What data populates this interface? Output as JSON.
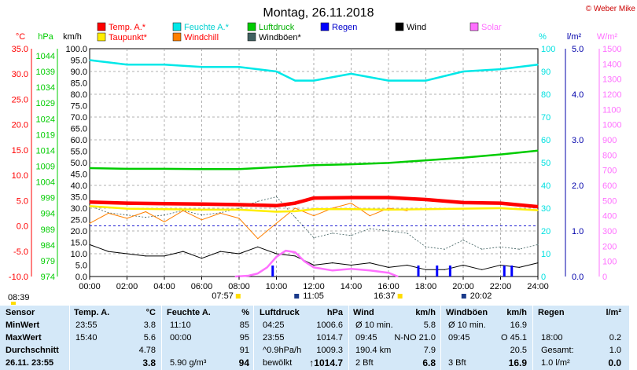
{
  "page": {
    "title": "Montag, 26.11.2018",
    "credit": "© Weber Mike",
    "sunrise": "07:57",
    "sunset": "16:37",
    "moonrise": "11:05",
    "moonset": "20:02",
    "left_time": "08:39"
  },
  "axes": {
    "left_units": [
      "°C",
      "hPa",
      "km/h"
    ],
    "right_units": [
      "%",
      "l/m²",
      "W/m²"
    ],
    "x_ticks": [
      "00:00",
      "02:00",
      "04:00",
      "06:00",
      "08:00",
      "10:00",
      "12:00",
      "14:00",
      "16:00",
      "18:00",
      "20:00",
      "22:00",
      "24:00"
    ],
    "temp_ticks": [
      "35.0",
      "30.0",
      "25.0",
      "20.0",
      "15.0",
      "10.0",
      "5.0",
      "0.0",
      "-5.0",
      "-10.0"
    ],
    "hpa_ticks": [
      "1044",
      "1039",
      "1034",
      "1029",
      "1024",
      "1019",
      "1014",
      "1009",
      "1004",
      "999",
      "994",
      "989",
      "984",
      "979",
      "974"
    ],
    "kmh_ticks": [
      "100.0",
      "95.0",
      "90.0",
      "85.0",
      "80.0",
      "75.0",
      "70.0",
      "65.0",
      "60.0",
      "55.0",
      "50.0",
      "45.0",
      "40.0",
      "35.0",
      "30.0",
      "25.0",
      "20.0",
      "15.0",
      "10.0",
      "5.0",
      "0.0"
    ],
    "pct_ticks": [
      "100",
      "90",
      "80",
      "70",
      "60",
      "50",
      "40",
      "30",
      "20",
      "10",
      "0"
    ],
    "rain_ticks": [
      "5.0",
      "4.0",
      "3.0",
      "2.0",
      "1.0",
      "0.0"
    ],
    "solar_ticks": [
      "1500",
      "1400",
      "1300",
      "1200",
      "1100",
      "1000",
      "900",
      "800",
      "700",
      "600",
      "500",
      "400",
      "300",
      "200",
      "100",
      "0"
    ],
    "colors": {
      "temp_axis": "#ff0000",
      "hpa_axis": "#00cc00",
      "kmh_axis": "#000000",
      "pct_axis": "#00e0e0",
      "rain_axis": "#0000aa",
      "solar_axis": "#ff70ff"
    }
  },
  "legend": [
    {
      "label": "Temp. A.*",
      "color": "#ff0000",
      "label_color": "#ff0000"
    },
    {
      "label": "Feuchte A.*",
      "color": "#00e8e8",
      "label_color": "#00d0d0"
    },
    {
      "label": "Luftdruck",
      "color": "#00cc00",
      "label_color": "#00b000"
    },
    {
      "label": "Regen",
      "color": "#0000ff",
      "label_color": "#0000cc"
    },
    {
      "label": "Wind",
      "color": "#000000",
      "label_color": "#000000"
    },
    {
      "label": "Solar",
      "color": "#ff70ff",
      "label_color": "#ff70ff"
    },
    {
      "label": "Taupunkt*",
      "color": "#ffee00",
      "label_color": "#ff0000"
    },
    {
      "label": "Windchill",
      "color": "#ff8000",
      "label_color": "#ff0000"
    },
    {
      "label": "Windböen*",
      "color": "#406060",
      "label_color": "#000000"
    }
  ],
  "chart_data": {
    "type": "line",
    "title": "Montag, 26.11.2018",
    "x_unit": "time of day",
    "xlim": [
      "00:00",
      "24:00"
    ],
    "grid": true,
    "legend_position": "top",
    "series": [
      {
        "name": "Temp. A.*",
        "axis": "°C",
        "x": [
          0,
          2,
          4,
          6,
          8,
          9,
          10,
          11,
          12,
          14,
          16,
          18,
          20,
          22,
          24
        ],
        "values": [
          4.7,
          4.5,
          4.4,
          4.3,
          4.2,
          4.1,
          4.0,
          4.5,
          5.5,
          5.6,
          5.6,
          5.2,
          4.6,
          4.5,
          3.8
        ]
      },
      {
        "name": "Taupunkt*",
        "axis": "°C",
        "x": [
          0,
          2,
          4,
          6,
          8,
          10,
          11,
          12,
          14,
          16,
          18,
          20,
          22,
          24
        ],
        "values": [
          3.9,
          3.4,
          3.3,
          3.2,
          3.2,
          2.8,
          2.9,
          3.3,
          3.3,
          3.2,
          3.3,
          3.4,
          3.5,
          3.1
        ]
      },
      {
        "name": "Feuchte A.*",
        "axis": "%",
        "x": [
          0,
          1,
          2,
          4,
          6,
          8,
          10,
          11,
          12,
          14,
          16,
          18,
          20,
          22,
          24
        ],
        "values": [
          95,
          94,
          93,
          93,
          92,
          92,
          90,
          86,
          86,
          89,
          86,
          86,
          90,
          91,
          93
        ]
      },
      {
        "name": "Luftdruck",
        "axis": "hPa",
        "x": [
          0,
          2,
          4,
          6,
          8,
          10,
          12,
          14,
          16,
          18,
          20,
          22,
          24
        ],
        "values": [
          1007.3,
          1007.1,
          1007.1,
          1007.0,
          1007.0,
          1007.6,
          1008.2,
          1008.5,
          1008.9,
          1009.7,
          1010.5,
          1011.5,
          1012.7
        ]
      },
      {
        "name": "Windchill",
        "axis": "°C",
        "x": [
          0,
          1,
          2,
          3,
          4,
          5,
          6,
          7,
          8,
          9,
          10,
          11,
          12,
          13,
          14,
          15,
          16,
          17
        ],
        "values": [
          0.5,
          2.5,
          1.5,
          2.8,
          0.8,
          3.0,
          1.2,
          2.5,
          1.5,
          -2.5,
          0.5,
          3.5,
          2.0,
          3.5,
          4.5,
          2.0,
          3.5,
          3.0
        ]
      },
      {
        "name": "Wind",
        "axis": "km/h",
        "x": [
          0,
          1,
          2,
          3,
          4,
          5,
          6,
          7,
          8,
          9,
          10,
          11,
          12,
          13,
          14,
          15,
          16,
          17,
          18,
          19,
          20,
          21,
          22,
          23,
          24
        ],
        "values": [
          14,
          11,
          10,
          9,
          9,
          11,
          8,
          11,
          10,
          13,
          10,
          9,
          5,
          6,
          5,
          6,
          4,
          5,
          3,
          3,
          5,
          3,
          5,
          4,
          6
        ]
      },
      {
        "name": "Windböen*",
        "axis": "km/h",
        "x": [
          0,
          1,
          2,
          3,
          4,
          5,
          6,
          7,
          8,
          9,
          10,
          11,
          12,
          13,
          14,
          15,
          16,
          17,
          18,
          19,
          20,
          21,
          22,
          23,
          24
        ],
        "values": [
          31,
          28,
          27,
          26,
          27,
          29,
          27,
          28,
          30,
          33,
          35,
          26,
          17,
          19,
          18,
          21,
          20,
          19,
          13,
          12,
          16,
          12,
          13,
          12,
          14
        ]
      },
      {
        "name": "Solar",
        "axis": "W/m²",
        "x": [
          7.8,
          8.5,
          9,
          9.5,
          10,
          10.5,
          11,
          11.5,
          12,
          13,
          14,
          15,
          16,
          16.5
        ],
        "values": [
          0,
          5,
          20,
          60,
          130,
          170,
          160,
          100,
          60,
          40,
          50,
          40,
          25,
          0
        ]
      },
      {
        "name": "Regen",
        "axis": "l/m²",
        "x": [
          9.8,
          17.6,
          18.6,
          19.3,
          22.2,
          22.6
        ],
        "values": [
          0.1,
          0.2,
          0.1,
          0.1,
          0.2,
          0.2
        ]
      }
    ],
    "y_axes": {
      "°C": [
        -10,
        35
      ],
      "hPa": [
        974,
        1044
      ],
      "km/h": [
        0,
        100
      ],
      "%": [
        0,
        100
      ],
      "l/m²": [
        0,
        5
      ],
      "W/m²": [
        0,
        1500
      ]
    }
  },
  "stats": {
    "headers": [
      "Sensor",
      "Temp. A.",
      "°C",
      "Feuchte A.",
      "%",
      "Luftdruck",
      "hPa",
      "Wind",
      "km/h",
      "Windböen",
      "km/h",
      "Regen",
      "l/m²"
    ],
    "row_labels": [
      "MinWert",
      "MaxWert",
      "Durchschnitt",
      "26.11. 23:55"
    ],
    "temp": [
      [
        "23:55",
        "3.8"
      ],
      [
        "15:40",
        "5.6"
      ],
      [
        "",
        "4.78"
      ],
      [
        "",
        "3.8"
      ]
    ],
    "hum": [
      [
        "11:10",
        "85"
      ],
      [
        "00:00",
        "95"
      ],
      [
        "",
        "91"
      ],
      [
        "5.90 g/m³",
        "94"
      ]
    ],
    "pres": [
      [
        "04:25",
        "1006.6"
      ],
      [
        "23:55",
        "1014.7"
      ],
      [
        "^0.9hPa/h",
        "1009.3"
      ],
      [
        "bewölkt",
        "↑1014.7"
      ]
    ],
    "wind": [
      [
        "Ø 10 min.",
        "5.8"
      ],
      [
        "09:45",
        "N-NO 21.0"
      ],
      [
        "190.4 km",
        "7.9"
      ],
      [
        "2 Bft",
        "6.8"
      ]
    ],
    "gust": [
      [
        "Ø 10 min.",
        "16.9"
      ],
      [
        "09:45",
        "O 45.1"
      ],
      [
        "",
        "20.5"
      ],
      [
        "3 Bft",
        "16.9"
      ]
    ],
    "rain": [
      [
        "",
        ""
      ],
      [
        "18:00",
        "0.2"
      ],
      [
        "Gesamt:",
        "1.0"
      ],
      [
        "1.0 l/m²",
        "0.0"
      ]
    ]
  }
}
